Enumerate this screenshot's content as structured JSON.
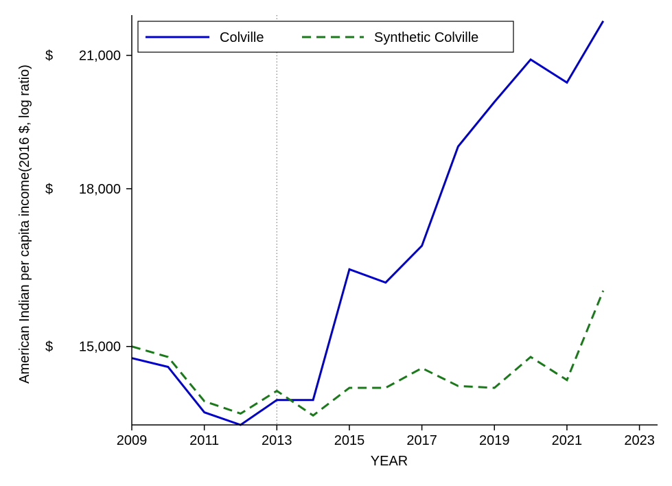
{
  "chart_data": {
    "type": "line",
    "xlabel": "YEAR",
    "ylabel": "American Indian per capita income(2016 $, log ratio)",
    "y_scale": "log",
    "xlim": [
      2009,
      2023.5
    ],
    "ylim": [
      13700,
      22000
    ],
    "x_ticks": [
      2009,
      2011,
      2013,
      2015,
      2017,
      2019,
      2021,
      2023
    ],
    "x_tick_labels": [
      "2009",
      "2011",
      "2013",
      "2015",
      "2017",
      "2019",
      "2021",
      "2023"
    ],
    "y_ticks": [
      {
        "value": 15000,
        "currency": "$",
        "label": "15,000"
      },
      {
        "value": 18000,
        "currency": "$",
        "label": "18,000"
      },
      {
        "value": 21000,
        "currency": "$",
        "label": "21,000"
      }
    ],
    "grid": false,
    "legend_position": "top-left",
    "annotations": [
      {
        "type": "vertical-dotted-line",
        "x": 2013,
        "color": "#808080"
      }
    ],
    "x": [
      2009,
      2010,
      2011,
      2012,
      2013,
      2014,
      2015,
      2016,
      2017,
      2018,
      2019,
      2020,
      2021,
      2022
    ],
    "series": [
      {
        "name": "Colville",
        "color": "#0000cc",
        "style": "solid",
        "values": [
          14800,
          14650,
          13900,
          13700,
          14100,
          14100,
          16400,
          16150,
          16850,
          18900,
          19900,
          20900,
          20350,
          21850
        ]
      },
      {
        "name": "Synthetic Colville",
        "color": "#1a7a1a",
        "style": "dashed",
        "values": [
          15000,
          14820,
          14080,
          13880,
          14250,
          13850,
          14300,
          14300,
          14630,
          14330,
          14300,
          14820,
          14430,
          16000
        ]
      }
    ]
  }
}
